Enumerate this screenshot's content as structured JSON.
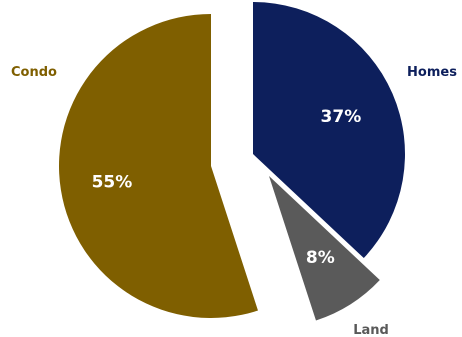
{
  "chart_data": {
    "type": "pie",
    "series": [
      {
        "slices": [
          {
            "name": "Homes",
            "value": 37,
            "label": "37%",
            "color": "#0d1f5c",
            "name_color": "#0d1f5c"
          },
          {
            "name": "Land",
            "value": 8,
            "label": "8%",
            "color": "#5a5a5a",
            "name_color": "#595959"
          },
          {
            "name": "Condo",
            "value": 55,
            "label": "55%",
            "color": "#7f5f00",
            "name_color": "#7f5f00"
          }
        ]
      }
    ],
    "start_angle_deg": 0,
    "direction": "clockwise",
    "exploded": true,
    "legend": "slice-names-outside"
  }
}
